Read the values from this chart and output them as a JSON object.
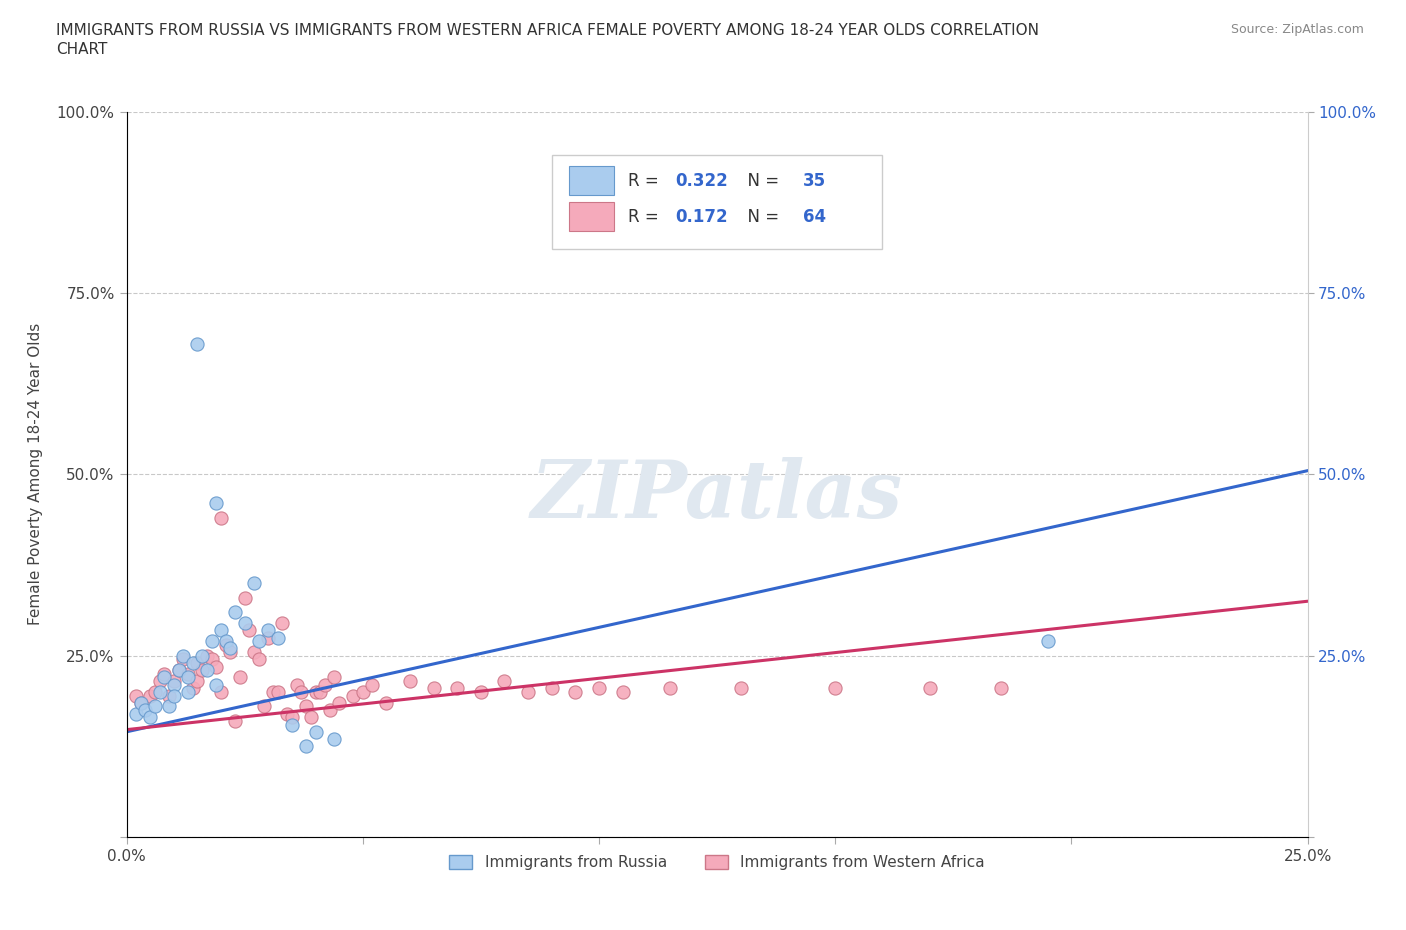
{
  "title": "IMMIGRANTS FROM RUSSIA VS IMMIGRANTS FROM WESTERN AFRICA FEMALE POVERTY AMONG 18-24 YEAR OLDS CORRELATION\nCHART",
  "source": "Source: ZipAtlas.com",
  "ylabel": "Female Poverty Among 18-24 Year Olds",
  "xlim": [
    0.0,
    0.25
  ],
  "ylim": [
    0.0,
    1.0
  ],
  "russia_color": "#aaccee",
  "russia_edge": "#6699cc",
  "western_africa_color": "#f5aabb",
  "western_africa_edge": "#cc7788",
  "trend_russia_color": "#3366cc",
  "trend_western_africa_color": "#cc3366",
  "legend_bottom_russia": "Immigrants from Russia",
  "legend_bottom_wa": "Immigrants from Western Africa",
  "russia_R": 0.322,
  "russia_N": 35,
  "wa_R": 0.172,
  "wa_N": 64,
  "russia_trend_x0": 0.0,
  "russia_trend_y0": 0.145,
  "russia_trend_x1": 0.25,
  "russia_trend_y1": 0.505,
  "wa_trend_x0": 0.0,
  "wa_trend_y0": 0.148,
  "wa_trend_x1": 0.25,
  "wa_trend_y1": 0.325,
  "russia_scatter_x": [
    0.002,
    0.003,
    0.004,
    0.005,
    0.006,
    0.007,
    0.008,
    0.009,
    0.01,
    0.01,
    0.011,
    0.012,
    0.013,
    0.013,
    0.014,
    0.015,
    0.016,
    0.017,
    0.018,
    0.019,
    0.02,
    0.021,
    0.022,
    0.023,
    0.025,
    0.027,
    0.028,
    0.03,
    0.032,
    0.035,
    0.038,
    0.04,
    0.044,
    0.195,
    0.019
  ],
  "russia_scatter_y": [
    0.17,
    0.185,
    0.175,
    0.165,
    0.18,
    0.2,
    0.22,
    0.18,
    0.21,
    0.195,
    0.23,
    0.25,
    0.2,
    0.22,
    0.24,
    0.68,
    0.25,
    0.23,
    0.27,
    0.21,
    0.285,
    0.27,
    0.26,
    0.31,
    0.295,
    0.35,
    0.27,
    0.285,
    0.275,
    0.155,
    0.125,
    0.145,
    0.135,
    0.27,
    0.46
  ],
  "wa_scatter_x": [
    0.002,
    0.003,
    0.005,
    0.006,
    0.007,
    0.008,
    0.009,
    0.01,
    0.011,
    0.012,
    0.013,
    0.014,
    0.015,
    0.015,
    0.016,
    0.017,
    0.018,
    0.019,
    0.02,
    0.02,
    0.021,
    0.022,
    0.023,
    0.024,
    0.025,
    0.026,
    0.027,
    0.028,
    0.029,
    0.03,
    0.031,
    0.032,
    0.033,
    0.034,
    0.035,
    0.036,
    0.037,
    0.038,
    0.039,
    0.04,
    0.041,
    0.042,
    0.043,
    0.044,
    0.045,
    0.048,
    0.05,
    0.052,
    0.055,
    0.06,
    0.065,
    0.07,
    0.08,
    0.09,
    0.1,
    0.115,
    0.13,
    0.15,
    0.17,
    0.185,
    0.075,
    0.085,
    0.095,
    0.105
  ],
  "wa_scatter_y": [
    0.195,
    0.185,
    0.195,
    0.2,
    0.215,
    0.225,
    0.195,
    0.215,
    0.23,
    0.245,
    0.225,
    0.205,
    0.24,
    0.215,
    0.23,
    0.25,
    0.245,
    0.235,
    0.44,
    0.2,
    0.265,
    0.255,
    0.16,
    0.22,
    0.33,
    0.285,
    0.255,
    0.245,
    0.18,
    0.275,
    0.2,
    0.2,
    0.295,
    0.17,
    0.165,
    0.21,
    0.2,
    0.18,
    0.165,
    0.2,
    0.2,
    0.21,
    0.175,
    0.22,
    0.185,
    0.195,
    0.2,
    0.21,
    0.185,
    0.215,
    0.205,
    0.205,
    0.215,
    0.205,
    0.205,
    0.205,
    0.205,
    0.205,
    0.205,
    0.205,
    0.2,
    0.2,
    0.2,
    0.2
  ]
}
